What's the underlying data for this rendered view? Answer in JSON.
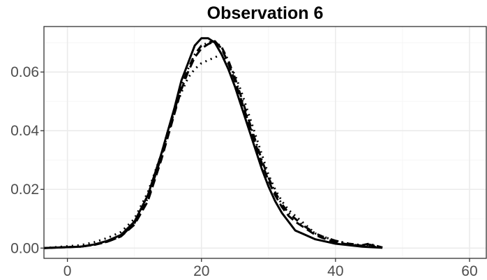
{
  "chart_data": {
    "type": "line",
    "title": "Observation 6",
    "xlabel": "",
    "ylabel": "",
    "xlim": [
      -3.5,
      62.5
    ],
    "ylim": [
      -0.0035,
      0.0755
    ],
    "xticks": [
      0,
      20,
      40,
      60
    ],
    "xtick_labels": [
      "0",
      "20",
      "40",
      "60"
    ],
    "yticks": [
      0.0,
      0.02,
      0.04,
      0.06
    ],
    "ytick_labels": [
      "0.00",
      "0.02",
      "0.04",
      "0.06"
    ],
    "grid": true,
    "legend": "none",
    "series": [
      {
        "line_style": "solid",
        "x": [
          -3.5,
          2,
          4,
          6,
          8,
          10,
          12,
          14,
          15,
          16,
          17,
          18,
          19,
          20,
          21,
          22,
          23,
          24,
          25,
          26,
          27,
          28,
          29,
          30,
          31,
          32,
          33,
          34,
          35,
          36,
          37,
          38,
          40,
          42,
          44,
          47
        ],
        "y": [
          0.0,
          0.0005,
          0.0012,
          0.0025,
          0.0045,
          0.009,
          0.018,
          0.032,
          0.04,
          0.048,
          0.057,
          0.063,
          0.069,
          0.0715,
          0.0715,
          0.07,
          0.066,
          0.061,
          0.055,
          0.048,
          0.041,
          0.034,
          0.027,
          0.021,
          0.016,
          0.012,
          0.009,
          0.006,
          0.005,
          0.004,
          0.003,
          0.0025,
          0.0015,
          0.001,
          0.0005,
          0.0001
        ]
      },
      {
        "line_style": "dashed",
        "x": [
          -3.5,
          2,
          4,
          6,
          8,
          10,
          12,
          14,
          15,
          16,
          17,
          18,
          19,
          20,
          21,
          22,
          23,
          24,
          25,
          26,
          27,
          28,
          29,
          30,
          31,
          32,
          33,
          34,
          35,
          36,
          37,
          38,
          40,
          42,
          44,
          45,
          47
        ],
        "y": [
          0.0,
          0.0005,
          0.0011,
          0.0022,
          0.004,
          0.008,
          0.016,
          0.03,
          0.038,
          0.046,
          0.054,
          0.06,
          0.065,
          0.068,
          0.0695,
          0.0705,
          0.068,
          0.063,
          0.057,
          0.05,
          0.043,
          0.036,
          0.029,
          0.023,
          0.018,
          0.014,
          0.011,
          0.009,
          0.0075,
          0.006,
          0.0045,
          0.0035,
          0.002,
          0.0012,
          0.0008,
          0.0012,
          0.0002
        ]
      },
      {
        "line_style": "dotted",
        "x": [
          -3.5,
          2,
          4,
          6,
          8,
          10,
          12,
          14,
          15,
          16,
          17,
          18,
          19,
          20,
          21,
          22,
          23,
          24,
          25,
          26,
          27,
          28,
          29,
          30,
          31,
          32,
          33,
          34,
          35,
          36,
          37,
          38,
          40,
          42,
          44,
          47
        ],
        "y": [
          0.0,
          0.001,
          0.002,
          0.0035,
          0.0055,
          0.01,
          0.019,
          0.032,
          0.04,
          0.047,
          0.053,
          0.058,
          0.061,
          0.063,
          0.064,
          0.065,
          0.066,
          0.063,
          0.059,
          0.053,
          0.046,
          0.039,
          0.032,
          0.025,
          0.02,
          0.016,
          0.013,
          0.011,
          0.009,
          0.007,
          0.005,
          0.004,
          0.0025,
          0.0015,
          0.0008,
          0.0002
        ]
      },
      {
        "line_style": "dotdash",
        "x": [
          -3.5,
          2,
          4,
          6,
          8,
          10,
          12,
          14,
          15,
          16,
          17,
          18,
          19,
          20,
          21,
          22,
          23,
          24,
          25,
          26,
          27,
          28,
          29,
          30,
          31,
          32,
          33,
          34,
          35,
          36,
          37,
          38,
          40,
          42,
          44,
          45,
          47
        ],
        "y": [
          0.0,
          0.0005,
          0.0011,
          0.0022,
          0.004,
          0.0085,
          0.017,
          0.031,
          0.039,
          0.047,
          0.055,
          0.061,
          0.066,
          0.069,
          0.07,
          0.0705,
          0.0685,
          0.064,
          0.058,
          0.051,
          0.044,
          0.037,
          0.03,
          0.024,
          0.019,
          0.015,
          0.012,
          0.01,
          0.008,
          0.0065,
          0.005,
          0.004,
          0.0025,
          0.0015,
          0.001,
          0.0015,
          0.0002
        ]
      }
    ]
  }
}
